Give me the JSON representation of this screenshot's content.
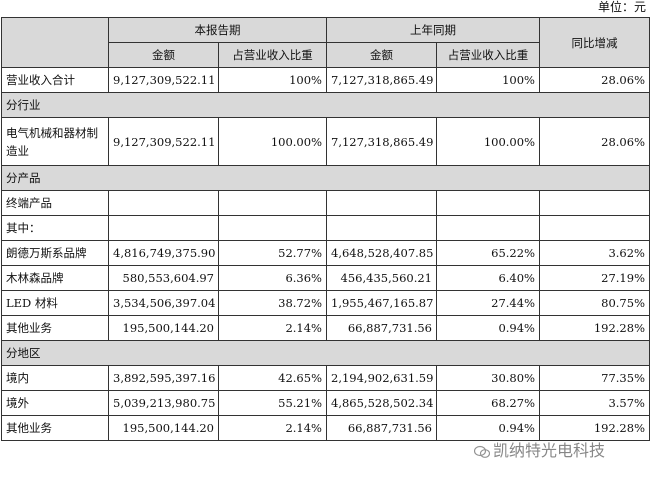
{
  "unit_label": "单位：元",
  "headers": {
    "current_period": "本报告期",
    "prior_period": "上年同期",
    "yoy_change": "同比增减",
    "amount": "金额",
    "revenue_share": "占营业收入比重"
  },
  "total_row": {
    "label": "营业收入合计",
    "cur_amount": "9,127,309,522.11",
    "cur_share": "100%",
    "prev_amount": "7,127,318,865.49",
    "prev_share": "100%",
    "change": "28.06%"
  },
  "sections": {
    "industry": "分行业",
    "product": "分产品",
    "region": "分地区"
  },
  "industry_rows": [
    {
      "label": "电气机械和器材制造业",
      "cur_amount": "9,127,309,522.11",
      "cur_share": "100.00%",
      "prev_amount": "7,127,318,865.49",
      "prev_share": "100.00%",
      "change": "28.06%"
    }
  ],
  "product_blank_rows": [
    {
      "label": "终端产品"
    },
    {
      "label": "其中："
    }
  ],
  "product_rows": [
    {
      "label": "朗德万斯系品牌",
      "cur_amount": "4,816,749,375.90",
      "cur_share": "52.77%",
      "prev_amount": "4,648,528,407.85",
      "prev_share": "65.22%",
      "change": "3.62%"
    },
    {
      "label": "木林森品牌",
      "cur_amount": "580,553,604.97",
      "cur_share": "6.36%",
      "prev_amount": "456,435,560.21",
      "prev_share": "6.40%",
      "change": "27.19%"
    },
    {
      "label": "LED 材料",
      "cur_amount": "3,534,506,397.04",
      "cur_share": "38.72%",
      "prev_amount": "1,955,467,165.87",
      "prev_share": "27.44%",
      "change": "80.75%"
    },
    {
      "label": "其他业务",
      "cur_amount": "195,500,144.20",
      "cur_share": "2.14%",
      "prev_amount": "66,887,731.56",
      "prev_share": "0.94%",
      "change": "192.28%"
    }
  ],
  "region_rows": [
    {
      "label": "境内",
      "cur_amount": "3,892,595,397.16",
      "cur_share": "42.65%",
      "prev_amount": "2,194,902,631.59",
      "prev_share": "30.80%",
      "change": "77.35%"
    },
    {
      "label": "境外",
      "cur_amount": "5,039,213,980.75",
      "cur_share": "55.21%",
      "prev_amount": "4,865,528,502.34",
      "prev_share": "68.27%",
      "change": "3.57%"
    },
    {
      "label": "其他业务",
      "cur_amount": "195,500,144.20",
      "cur_share": "2.14%",
      "prev_amount": "66,887,731.56",
      "prev_share": "0.94%",
      "change": "192.28%"
    }
  ],
  "watermark": "凯纳特光电科技"
}
